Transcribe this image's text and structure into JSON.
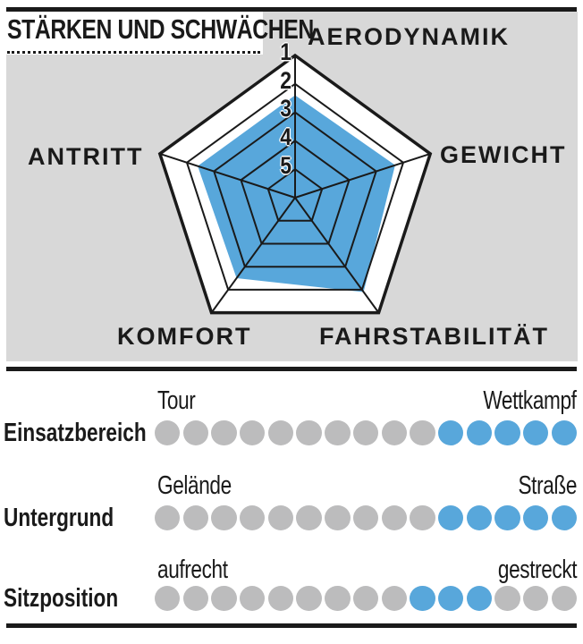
{
  "title": "STÄRKEN UND SCHWÄCHEN",
  "colors": {
    "ink": "#1a1a1a",
    "panel_bg": "#d8d8d8",
    "accent_blue": "#58a7db",
    "dot_gray": "#bcbcbd"
  },
  "chart_data": [
    {
      "type": "radar",
      "title": "STÄRKEN UND SCHWÄCHEN",
      "axes": [
        "AERODYNAMIK",
        "GEWICHT",
        "FAHRSTABILITÄT",
        "KOMFORT",
        "ANTRITT"
      ],
      "values": [
        2.4,
        2.3,
        1.9,
        2.5,
        2.4
      ],
      "scale": {
        "ticks": [
          "1",
          "2",
          "3",
          "4",
          "5"
        ],
        "min": 1,
        "max": 5,
        "direction": "1 at outer edge, 5 at center; smaller value = stronger"
      },
      "grid": "pentagon rings at integer steps, spokes to each axis",
      "fill_color": "#58a7db",
      "legend_position": "none"
    },
    {
      "type": "dot-scale",
      "dots_per_row": 15,
      "rows": [
        {
          "label": "Einsatzbereich",
          "left_label": "Tour",
          "right_label": "Wettkampf",
          "filled_positions": [
            11,
            12,
            13,
            14,
            15
          ]
        },
        {
          "label": "Untergrund",
          "left_label": "Gelände",
          "right_label": "Straße",
          "filled_positions": [
            11,
            12,
            13,
            14,
            15
          ]
        },
        {
          "label": "Sitzposition",
          "left_label": "aufrecht",
          "right_label": "gestreckt",
          "filled_positions": [
            10,
            11,
            12
          ]
        }
      ]
    }
  ]
}
